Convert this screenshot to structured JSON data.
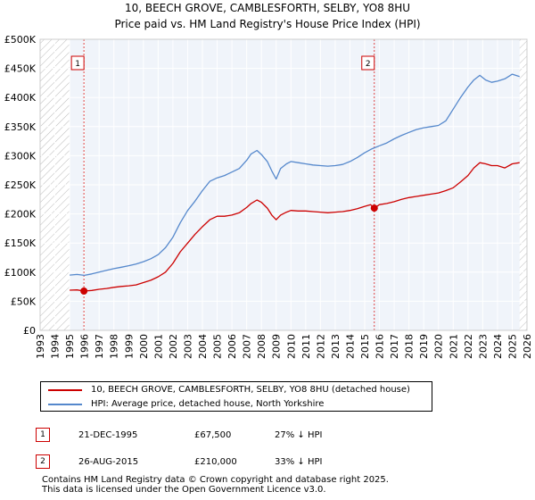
{
  "chart_data": {
    "type": "line",
    "title": "10, BEECH GROVE, CAMBLESFORTH, SELBY, YO8 8HU",
    "subtitle": "Price paid vs. HM Land Registry's House Price Index (HPI)",
    "xlim": [
      1993,
      2026
    ],
    "ylim": [
      0,
      500000
    ],
    "x_ticks": [
      "1993",
      "1994",
      "1995",
      "1996",
      "1997",
      "1998",
      "1999",
      "2000",
      "2001",
      "2002",
      "2003",
      "2004",
      "2005",
      "2006",
      "2007",
      "2008",
      "2009",
      "2010",
      "2011",
      "2012",
      "2013",
      "2014",
      "2015",
      "2016",
      "2017",
      "2018",
      "2019",
      "2020",
      "2021",
      "2022",
      "2023",
      "2024",
      "2025",
      "2026"
    ],
    "y_ticks": [
      "£0",
      "£50K",
      "£100K",
      "£150K",
      "£200K",
      "£250K",
      "£300K",
      "£350K",
      "£400K",
      "£450K",
      "£500K"
    ],
    "hatched_ranges": [
      [
        1993,
        1995
      ],
      [
        2025.5,
        2026
      ]
    ],
    "series": [
      {
        "name": "10, BEECH GROVE, CAMBLESFORTH, SELBY, YO8 8HU (detached house)",
        "color": "#cc0000",
        "x": [
          1995.0,
          1995.5,
          1995.97,
          1996.5,
          1997.0,
          1997.5,
          1998.0,
          1998.5,
          1999.0,
          1999.5,
          2000.0,
          2000.5,
          2001.0,
          2001.5,
          2002.0,
          2002.5,
          2003.0,
          2003.5,
          2004.0,
          2004.5,
          2005.0,
          2005.5,
          2006.0,
          2006.5,
          2007.0,
          2007.3,
          2007.7,
          2008.0,
          2008.4,
          2008.7,
          2009.0,
          2009.3,
          2009.7,
          2010.0,
          2010.5,
          2011.0,
          2011.5,
          2012.0,
          2012.5,
          2013.0,
          2013.5,
          2014.0,
          2014.5,
          2015.0,
          2015.4,
          2015.65,
          2016.0,
          2016.5,
          2017.0,
          2017.5,
          2018.0,
          2018.5,
          2019.0,
          2019.5,
          2020.0,
          2020.5,
          2021.0,
          2021.5,
          2022.0,
          2022.4,
          2022.8,
          2023.2,
          2023.6,
          2024.0,
          2024.5,
          2025.0,
          2025.5
        ],
        "y": [
          69000,
          69500,
          67500,
          68500,
          70500,
          72000,
          74000,
          75500,
          76500,
          78000,
          82000,
          86000,
          92000,
          100000,
          115000,
          135000,
          150000,
          165000,
          178000,
          190000,
          196000,
          196000,
          198000,
          202000,
          211000,
          218000,
          224000,
          220000,
          210000,
          198000,
          190000,
          198000,
          203000,
          206000,
          205000,
          205000,
          204000,
          203000,
          202000,
          203000,
          204000,
          206000,
          209000,
          213000,
          216000,
          210000,
          216000,
          218000,
          221000,
          225000,
          228000,
          230000,
          232000,
          234000,
          236000,
          240000,
          245000,
          255000,
          266000,
          279000,
          288000,
          286000,
          283000,
          283000,
          279000,
          286000,
          288000
        ]
      },
      {
        "name": "HPI: Average price, detached house, North Yorkshire",
        "color": "#5588cc",
        "x": [
          1995.0,
          1995.5,
          1996.0,
          1996.5,
          1997.0,
          1997.5,
          1998.0,
          1998.5,
          1999.0,
          1999.5,
          2000.0,
          2000.5,
          2001.0,
          2001.5,
          2002.0,
          2002.5,
          2003.0,
          2003.5,
          2004.0,
          2004.5,
          2005.0,
          2005.5,
          2006.0,
          2006.5,
          2007.0,
          2007.3,
          2007.7,
          2008.0,
          2008.4,
          2008.7,
          2009.0,
          2009.3,
          2009.7,
          2010.0,
          2010.5,
          2011.0,
          2011.5,
          2012.0,
          2012.5,
          2013.0,
          2013.5,
          2014.0,
          2014.5,
          2015.0,
          2015.5,
          2016.0,
          2016.5,
          2017.0,
          2017.5,
          2018.0,
          2018.5,
          2019.0,
          2019.5,
          2020.0,
          2020.5,
          2021.0,
          2021.5,
          2022.0,
          2022.4,
          2022.8,
          2023.2,
          2023.6,
          2024.0,
          2024.5,
          2025.0,
          2025.5
        ],
        "y": [
          95000,
          96000,
          94500,
          97000,
          100000,
          103000,
          106000,
          108500,
          111000,
          114000,
          118000,
          123000,
          130000,
          142000,
          160000,
          185000,
          206000,
          222000,
          240000,
          256000,
          262000,
          266000,
          272000,
          278000,
          292000,
          303000,
          309000,
          302000,
          290000,
          274000,
          260000,
          278000,
          286000,
          290000,
          288000,
          286000,
          284000,
          283000,
          282000,
          283000,
          285000,
          290000,
          297000,
          305000,
          312000,
          317000,
          322000,
          329000,
          335000,
          340000,
          345000,
          348000,
          350000,
          352000,
          360000,
          380000,
          400000,
          418000,
          430000,
          438000,
          430000,
          426000,
          428000,
          432000,
          440000,
          436000
        ]
      }
    ],
    "sales": [
      {
        "id": "1",
        "x": 1995.97,
        "price": 67500
      },
      {
        "id": "2",
        "x": 2015.65,
        "price": 210000
      }
    ]
  },
  "legend": {
    "property_label": "10, BEECH GROVE, CAMBLESFORTH, SELBY, YO8 8HU (detached house)",
    "hpi_label": "HPI: Average price, detached house, North Yorkshire"
  },
  "transactions": [
    {
      "id": "1",
      "date": "21-DEC-1995",
      "price": "£67,500",
      "hpi": "27% ↓ HPI"
    },
    {
      "id": "2",
      "date": "26-AUG-2015",
      "price": "£210,000",
      "hpi": "33% ↓ HPI"
    }
  ],
  "footer": {
    "line1": "Contains HM Land Registry data © Crown copyright and database right 2025.",
    "line2": "This data is licensed under the Open Government Licence v3.0."
  }
}
